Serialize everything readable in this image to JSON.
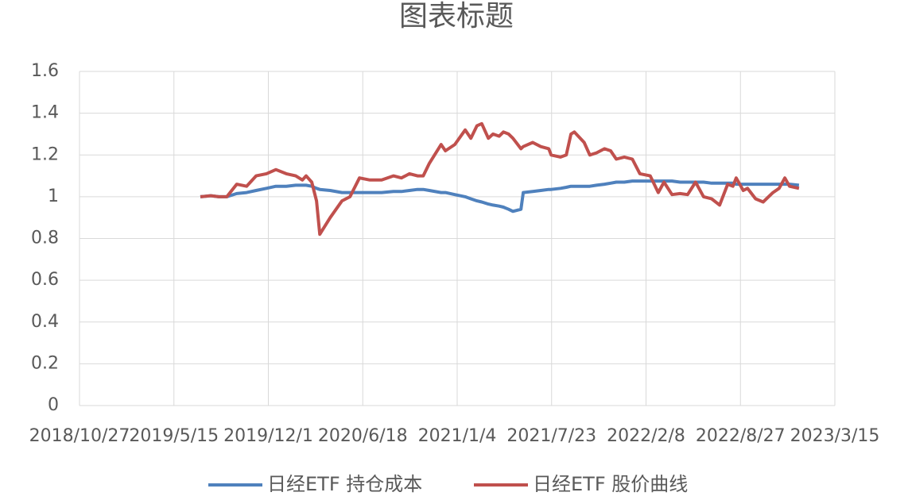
{
  "chart_data": {
    "type": "line",
    "title": "图表标题",
    "x": [
      "2019/7/10",
      "2019/8/1",
      "2019/8/18",
      "2019/9/4",
      "2019/9/25",
      "2019/10/16",
      "2019/11/5",
      "2019/11/27",
      "2019/12/17",
      "2020/1/8",
      "2020/1/28",
      "2020/2/11",
      "2020/2/19",
      "2020/3/2",
      "2020/3/12",
      "2020/3/19",
      "2020/4/10",
      "2020/5/5",
      "2020/5/22",
      "2020/6/11",
      "2020/7/3",
      "2020/7/28",
      "2020/8/22",
      "2020/9/8",
      "2020/9/25",
      "2020/10/12",
      "2020/10/24",
      "2020/11/6",
      "2020/12/1",
      "2020/12/10",
      "2020/12/30",
      "2021/1/21",
      "2021/2/2",
      "2021/2/15",
      "2021/2/25",
      "2021/3/11",
      "2021/3/21",
      "2021/4/3",
      "2021/4/12",
      "2021/4/23",
      "2021/5/2",
      "2021/5/19",
      "2021/5/24",
      "2021/6/13",
      "2021/6/30",
      "2021/7/17",
      "2021/7/22",
      "2021/8/11",
      "2021/8/23",
      "2021/9/2",
      "2021/9/9",
      "2021/9/30",
      "2021/10/12",
      "2021/10/26",
      "2021/11/12",
      "2021/11/25",
      "2021/12/7",
      "2021/12/24",
      "2022/1/10",
      "2022/1/26",
      "2022/2/17",
      "2022/3/6",
      "2022/3/18",
      "2022/4/4",
      "2022/4/21",
      "2022/5/7",
      "2022/5/24",
      "2022/6/10",
      "2022/6/27",
      "2022/7/14",
      "2022/7/31",
      "2022/8/11",
      "2022/8/18",
      "2022/9/2",
      "2022/9/11",
      "2022/9/28",
      "2022/10/14",
      "2022/11/4",
      "2022/11/17",
      "2022/11/29",
      "2022/12/9",
      "2022/12/29"
    ],
    "series": [
      {
        "name": "日经ETF 持仓成本",
        "color": "#4f81bd",
        "values": [
          1.0,
          1.005,
          1.0,
          1.0,
          1.015,
          1.02,
          1.03,
          1.04,
          1.05,
          1.05,
          1.055,
          1.055,
          1.055,
          1.05,
          1.04,
          1.035,
          1.03,
          1.02,
          1.02,
          1.02,
          1.02,
          1.02,
          1.025,
          1.025,
          1.03,
          1.035,
          1.035,
          1.03,
          1.02,
          1.02,
          1.01,
          1.0,
          0.99,
          0.98,
          0.975,
          0.965,
          0.96,
          0.955,
          0.95,
          0.94,
          0.93,
          0.94,
          1.02,
          1.025,
          1.03,
          1.035,
          1.035,
          1.04,
          1.045,
          1.05,
          1.05,
          1.05,
          1.05,
          1.055,
          1.06,
          1.065,
          1.07,
          1.07,
          1.075,
          1.075,
          1.075,
          1.075,
          1.075,
          1.075,
          1.07,
          1.07,
          1.07,
          1.07,
          1.065,
          1.065,
          1.065,
          1.065,
          1.06,
          1.06,
          1.06,
          1.06,
          1.06,
          1.06,
          1.06,
          1.06,
          1.06,
          1.055
        ]
      },
      {
        "name": "日经ETF 股价曲线",
        "color": "#c0504d",
        "values": [
          1.0,
          1.005,
          1.0,
          1.0,
          1.06,
          1.05,
          1.1,
          1.11,
          1.13,
          1.11,
          1.1,
          1.08,
          1.1,
          1.07,
          0.98,
          0.82,
          0.9,
          0.98,
          1.0,
          1.09,
          1.08,
          1.08,
          1.1,
          1.09,
          1.11,
          1.1,
          1.1,
          1.16,
          1.25,
          1.22,
          1.25,
          1.32,
          1.28,
          1.34,
          1.35,
          1.28,
          1.3,
          1.29,
          1.31,
          1.3,
          1.28,
          1.23,
          1.24,
          1.26,
          1.24,
          1.23,
          1.2,
          1.19,
          1.2,
          1.3,
          1.31,
          1.26,
          1.2,
          1.21,
          1.23,
          1.22,
          1.18,
          1.19,
          1.18,
          1.11,
          1.1,
          1.02,
          1.07,
          1.01,
          1.015,
          1.01,
          1.07,
          1.0,
          0.99,
          0.96,
          1.06,
          1.05,
          1.09,
          1.03,
          1.04,
          0.99,
          0.975,
          1.02,
          1.04,
          1.09,
          1.05,
          1.04
        ]
      }
    ],
    "xlim": [
      "2018/10/27",
      "2023/3/15"
    ],
    "xticks": [
      "2018/10/27",
      "2019/5/15",
      "2019/12/1",
      "2020/6/18",
      "2021/1/4",
      "2021/7/23",
      "2022/2/8",
      "2022/8/27",
      "2023/3/15"
    ],
    "ylim": [
      0,
      1.6
    ],
    "yticks": [
      0,
      0.2,
      0.4,
      0.6,
      0.8,
      1,
      1.2,
      1.4,
      1.6
    ],
    "grid": true,
    "legend": "bottom"
  }
}
